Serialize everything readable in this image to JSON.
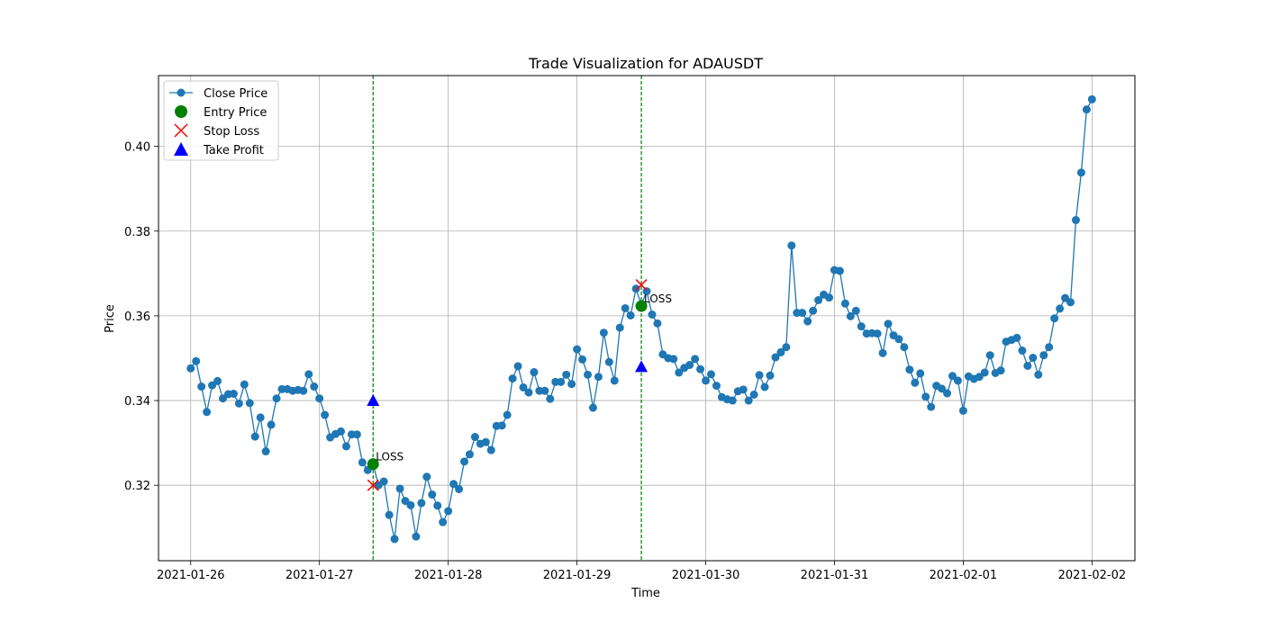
{
  "chart_data": {
    "type": "line",
    "title": "Trade Visualization for ADAUSDT",
    "xlabel": "Time",
    "ylabel": "Price",
    "x_start": "2021-01-26 00:00",
    "x_step_hours": 1,
    "x_tick_labels": [
      "2021-01-26",
      "2021-01-27",
      "2021-01-28",
      "2021-01-29",
      "2021-01-30",
      "2021-01-31",
      "2021-02-01",
      "2021-02-02"
    ],
    "xlim": [
      "2021-01-25 18:00",
      "2021-02-02 08:00"
    ],
    "y_ticks": [
      0.32,
      0.34,
      0.36,
      0.38,
      0.4
    ],
    "y_tick_labels": [
      "0.32",
      "0.34",
      "0.36",
      "0.38",
      "0.40"
    ],
    "ylim": [
      0.3022,
      0.4167
    ],
    "grid": true,
    "legend_position": "top-left",
    "series": [
      {
        "name": "Close Price",
        "color": "#1f77b4",
        "values": [
          0.3476,
          0.3493,
          0.3433,
          0.3373,
          0.3436,
          0.3446,
          0.3405,
          0.3415,
          0.3416,
          0.3393,
          0.3438,
          0.3394,
          0.3315,
          0.336,
          0.328,
          0.3343,
          0.3405,
          0.3427,
          0.3427,
          0.3423,
          0.3425,
          0.3423,
          0.3462,
          0.3433,
          0.3405,
          0.3366,
          0.3313,
          0.3321,
          0.3327,
          0.3292,
          0.332,
          0.332,
          0.3254,
          0.3236,
          0.325,
          0.32,
          0.3209,
          0.313,
          0.3073,
          0.3192,
          0.3163,
          0.3153,
          0.3079,
          0.3158,
          0.322,
          0.3178,
          0.3152,
          0.3113,
          0.3139,
          0.3203,
          0.3191,
          0.3256,
          0.3273,
          0.3314,
          0.3298,
          0.3302,
          0.3283,
          0.334,
          0.3341,
          0.3366,
          0.3452,
          0.3481,
          0.3431,
          0.3419,
          0.3467,
          0.3423,
          0.3423,
          0.3404,
          0.3444,
          0.3444,
          0.3461,
          0.3439,
          0.3521,
          0.3497,
          0.3461,
          0.3383,
          0.3456,
          0.356,
          0.3491,
          0.3447,
          0.3572,
          0.3618,
          0.3601,
          0.3664,
          0.3626,
          0.3658,
          0.3603,
          0.3582,
          0.3509,
          0.35,
          0.3498,
          0.3466,
          0.3477,
          0.3484,
          0.3498,
          0.3474,
          0.3447,
          0.3462,
          0.3435,
          0.3408,
          0.3403,
          0.34,
          0.3422,
          0.3426,
          0.34,
          0.3414,
          0.346,
          0.3432,
          0.3459,
          0.3502,
          0.3514,
          0.3526,
          0.3766,
          0.3607,
          0.3607,
          0.3587,
          0.3612,
          0.3637,
          0.365,
          0.3643,
          0.3708,
          0.3706,
          0.3629,
          0.3599,
          0.3612,
          0.3575,
          0.3558,
          0.3559,
          0.3558,
          0.3512,
          0.3581,
          0.3554,
          0.3545,
          0.3526,
          0.3473,
          0.3442,
          0.3464,
          0.3409,
          0.3385,
          0.3435,
          0.3428,
          0.3417,
          0.3458,
          0.3447,
          0.3376,
          0.3457,
          0.3451,
          0.3456,
          0.3466,
          0.3507,
          0.3465,
          0.3471,
          0.3539,
          0.3543,
          0.3548,
          0.3518,
          0.3482,
          0.3501,
          0.3461,
          0.3507,
          0.3526,
          0.3594,
          0.3617,
          0.3642,
          0.3632,
          0.3826,
          0.3938,
          0.4087,
          0.4111
        ]
      }
    ],
    "entries": [
      {
        "time": "2021-01-27 10:00",
        "price": 0.325,
        "label": "LOSS"
      },
      {
        "time": "2021-01-29 12:00",
        "price": 0.3623,
        "label": "LOSS"
      }
    ],
    "stop_losses": [
      {
        "time": "2021-01-27 10:00",
        "price": 0.32
      },
      {
        "time": "2021-01-29 12:00",
        "price": 0.3673
      }
    ],
    "take_profits": [
      {
        "time": "2021-01-27 10:00",
        "price": 0.34
      },
      {
        "time": "2021-01-29 12:00",
        "price": 0.348
      }
    ],
    "legend": [
      {
        "label": "Close Price",
        "marker": "line-dot",
        "color": "#1f77b4"
      },
      {
        "label": "Entry Price",
        "marker": "circle",
        "color": "#008000"
      },
      {
        "label": "Stop Loss",
        "marker": "x",
        "color": "#ff0000"
      },
      {
        "label": "Take Profit",
        "marker": "triangle",
        "color": "#0000ff"
      }
    ]
  }
}
